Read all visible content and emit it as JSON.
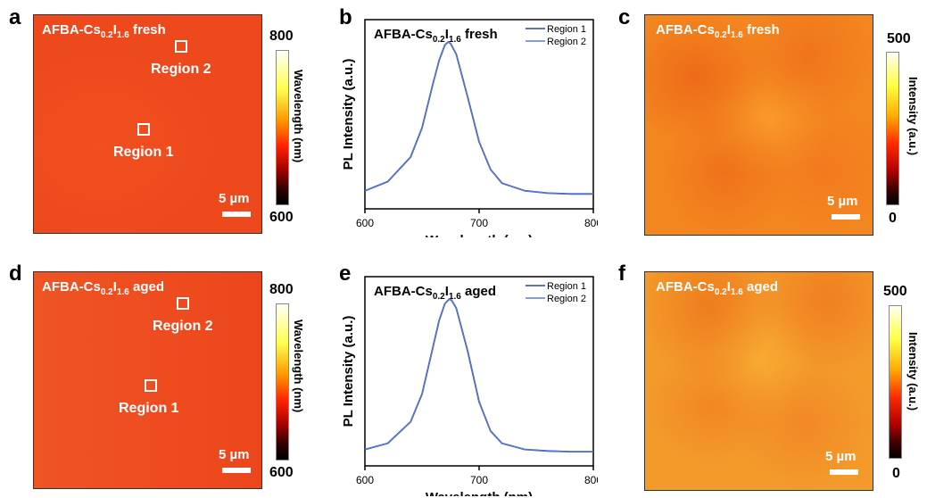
{
  "panels": {
    "a": {
      "label": "a",
      "title": "AFBA-Cs",
      "sub1": "0.2",
      "mid": "I",
      "sub2": "1.6",
      "state": " fresh",
      "region1": "Region 1",
      "region2": "Region 2",
      "scale": "5 µm",
      "colorbar": {
        "title": "Wavelength (nm)",
        "max": "800",
        "min": "600"
      }
    },
    "c": {
      "label": "c",
      "title": "AFBA-Cs",
      "sub1": "0.2",
      "mid": "I",
      "sub2": "1.6",
      "state": " fresh",
      "scale": "5 µm",
      "colorbar": {
        "title": "Intensity (a.u.)",
        "max": "500",
        "min": "0"
      }
    },
    "d": {
      "label": "d",
      "title": "AFBA-Cs",
      "sub1": "0.2",
      "mid": "I",
      "sub2": "1.6",
      "state": " aged",
      "region1": "Region 1",
      "region2": "Region 2",
      "scale": "5 µm",
      "colorbar": {
        "title": "Wavelength (nm)",
        "max": "800",
        "min": "600"
      }
    },
    "f": {
      "label": "f",
      "title": "AFBA-Cs",
      "sub1": "0.2",
      "mid": "I",
      "sub2": "1.6",
      "state": " aged",
      "scale": "5 µm",
      "colorbar": {
        "title": "Intensity (a.u.)",
        "max": "500",
        "min": "0"
      }
    },
    "b": {
      "label": "b"
    },
    "e": {
      "label": "e"
    }
  },
  "colors": {
    "map_wavelength": "#ee4a1e",
    "map_intensity": "#f4841f",
    "region1_line": "#2f3f9e",
    "region2_line": "#5a7ad6"
  },
  "chart_data": [
    {
      "panel": "b",
      "type": "line",
      "title": "AFBA-Cs0.2I1.6 fresh",
      "xlabel": "Wavelength (nm)",
      "ylabel": "PL Intensity (a.u.)",
      "xlim": [
        600,
        800
      ],
      "xticks": [
        600,
        700,
        800
      ],
      "series": [
        {
          "name": "Region 1",
          "color": "#2f3f9e",
          "x": [
            600,
            620,
            640,
            650,
            660,
            665,
            670,
            673,
            675,
            680,
            690,
            700,
            710,
            720,
            740,
            760,
            780,
            800
          ],
          "y": [
            0.03,
            0.09,
            0.25,
            0.44,
            0.74,
            0.88,
            0.98,
            1.0,
            0.99,
            0.92,
            0.64,
            0.35,
            0.17,
            0.08,
            0.03,
            0.015,
            0.01,
            0.01
          ]
        },
        {
          "name": "Region 2",
          "color": "#5a7ad6",
          "x": [
            600,
            620,
            640,
            650,
            660,
            665,
            670,
            673,
            675,
            680,
            690,
            700,
            710,
            720,
            740,
            760,
            780,
            800
          ],
          "y": [
            0.03,
            0.09,
            0.25,
            0.44,
            0.74,
            0.88,
            0.98,
            1.0,
            0.99,
            0.92,
            0.64,
            0.35,
            0.17,
            0.08,
            0.03,
            0.015,
            0.01,
            0.01
          ]
        }
      ]
    },
    {
      "panel": "e",
      "type": "line",
      "title": "AFBA-Cs0.2I1.6 aged",
      "xlabel": "Wavelength (nm)",
      "ylabel": "PL Intensity (a.u.)",
      "xlim": [
        600,
        800
      ],
      "xticks": [
        600,
        700,
        800
      ],
      "series": [
        {
          "name": "Region 1",
          "color": "#2f3f9e",
          "x": [
            600,
            620,
            640,
            650,
            660,
            665,
            670,
            674,
            676,
            680,
            690,
            700,
            710,
            720,
            740,
            760,
            780,
            800
          ],
          "y": [
            0.02,
            0.06,
            0.2,
            0.38,
            0.7,
            0.86,
            0.97,
            1.0,
            0.99,
            0.94,
            0.66,
            0.33,
            0.14,
            0.06,
            0.02,
            0.01,
            0.005,
            0.005
          ]
        },
        {
          "name": "Region 2",
          "color": "#5a7ad6",
          "x": [
            600,
            620,
            640,
            650,
            660,
            665,
            670,
            674,
            676,
            680,
            690,
            700,
            710,
            720,
            740,
            760,
            780,
            800
          ],
          "y": [
            0.02,
            0.06,
            0.2,
            0.38,
            0.7,
            0.86,
            0.97,
            1.0,
            0.99,
            0.94,
            0.66,
            0.33,
            0.14,
            0.06,
            0.02,
            0.01,
            0.005,
            0.005
          ]
        }
      ]
    }
  ]
}
